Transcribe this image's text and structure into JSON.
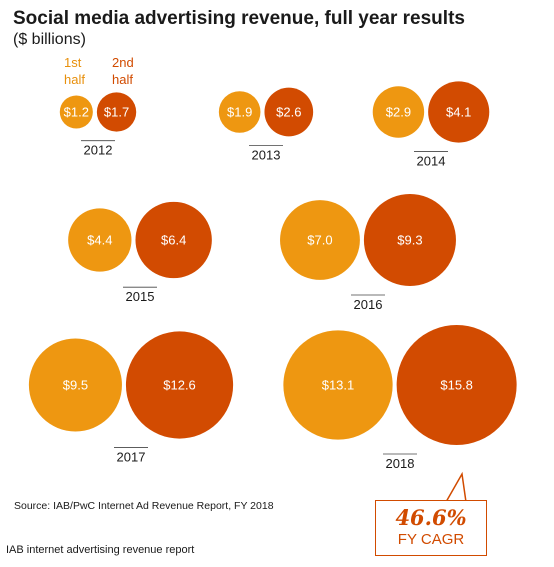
{
  "header": {
    "title": "Social media advertising revenue, full year results",
    "subtitle": "($ billions)"
  },
  "legend": {
    "h1_line1": "1st",
    "h1_line2": "half",
    "h2_line1": "2nd",
    "h2_line2": "half"
  },
  "colors": {
    "first_half": "#ee9711",
    "second_half": "#d24b01",
    "label_text": "#ffffff",
    "accent": "#d14b00"
  },
  "chart_data": {
    "type": "bubble",
    "title": "Social media advertising revenue, full year results",
    "subtitle": "($ billions)",
    "categories": [
      "2012",
      "2013",
      "2014",
      "2015",
      "2016",
      "2017",
      "2018"
    ],
    "series": [
      {
        "name": "1st half",
        "values": [
          1.2,
          1.9,
          2.9,
          4.4,
          7.0,
          9.5,
          13.1
        ],
        "labels": [
          "$1.2",
          "$1.9",
          "$2.9",
          "$4.4",
          "$7.0",
          "$9.5",
          "$13.1"
        ]
      },
      {
        "name": "2nd half",
        "values": [
          1.7,
          2.6,
          4.1,
          6.4,
          9.3,
          12.6,
          15.8
        ],
        "labels": [
          "$1.7",
          "$2.6",
          "$4.1",
          "$6.4",
          "$9.3",
          "$12.6",
          "$15.8"
        ]
      }
    ],
    "annotation": {
      "value": "46.6%",
      "label": "FY CAGR"
    },
    "legend_position": "top-left"
  },
  "source": "Source: IAB/PwC Internet Ad Revenue Report,  FY 2018",
  "footer": "IAB internet advertising revenue report"
}
